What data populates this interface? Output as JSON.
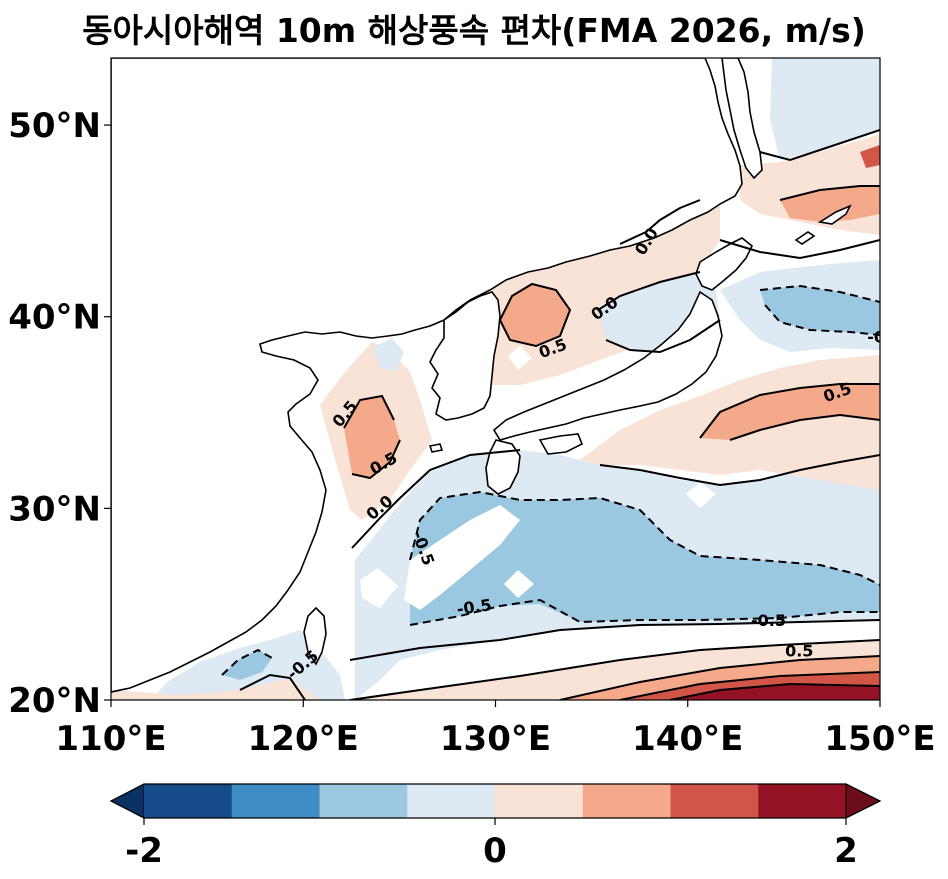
{
  "title": "동아시아해역 10m 해상풍속 편차(FMA 2026, m/s)",
  "chart_data": {
    "type": "map",
    "region": "East Asia seas",
    "xlim": [
      110,
      150
    ],
    "ylim": [
      20,
      53.5
    ],
    "x_ticks": [
      {
        "value": 110,
        "label": "110°E"
      },
      {
        "value": 120,
        "label": "120°E"
      },
      {
        "value": 130,
        "label": "130°E"
      },
      {
        "value": 140,
        "label": "140°E"
      },
      {
        "value": 150,
        "label": "150°E"
      }
    ],
    "y_ticks": [
      {
        "value": 20,
        "label": "20°N"
      },
      {
        "value": 30,
        "label": "30°N"
      },
      {
        "value": 40,
        "label": "40°N"
      },
      {
        "value": 50,
        "label": "50°N"
      }
    ],
    "contour_levels": [
      -0.5,
      0.0,
      0.5
    ],
    "contour_labels": [
      {
        "text": "0.0",
        "lon": 137.9,
        "lat": 43.9,
        "angle": -58
      },
      {
        "text": "0.0",
        "lon": 135.7,
        "lat": 40.4,
        "angle": -35
      },
      {
        "text": "0.5",
        "lon": 133.0,
        "lat": 38.3,
        "angle": -20
      },
      {
        "text": "0.5",
        "lon": 122.2,
        "lat": 34.9,
        "angle": -50
      },
      {
        "text": "0.5",
        "lon": 124.2,
        "lat": 32.3,
        "angle": -30
      },
      {
        "text": "0.0",
        "lon": 124.0,
        "lat": 30.0,
        "angle": -40
      },
      {
        "text": "-0.5",
        "lon": 126.2,
        "lat": 27.9,
        "angle": 70
      },
      {
        "text": "-0.5",
        "lon": 128.9,
        "lat": 24.8,
        "angle": -8
      },
      {
        "text": "-0.5",
        "lon": 120.0,
        "lat": 21.8,
        "angle": -40
      },
      {
        "text": "0.5",
        "lon": 147.8,
        "lat": 36.0,
        "angle": -20
      },
      {
        "text": "-0.5",
        "lon": 144.2,
        "lat": 24.1,
        "angle": 0
      },
      {
        "text": "0.5",
        "lon": 145.8,
        "lat": 22.5,
        "angle": 0
      },
      {
        "text": "-0",
        "lon": 149.8,
        "lat": 38.9,
        "angle": 0
      }
    ],
    "colorbar": {
      "min": -2,
      "max": 2,
      "extend": "both",
      "tick_labels": [
        "-2",
        "0",
        "2"
      ],
      "colors": [
        "#174c8a",
        "#3f8dc4",
        "#9ac8e0",
        "#dde9f3",
        "#f9e3d6",
        "#f4a98a",
        "#d15648",
        "#931324"
      ],
      "extend_low_color": "#0b3263",
      "extend_high_color": "#6b0d1d"
    }
  }
}
